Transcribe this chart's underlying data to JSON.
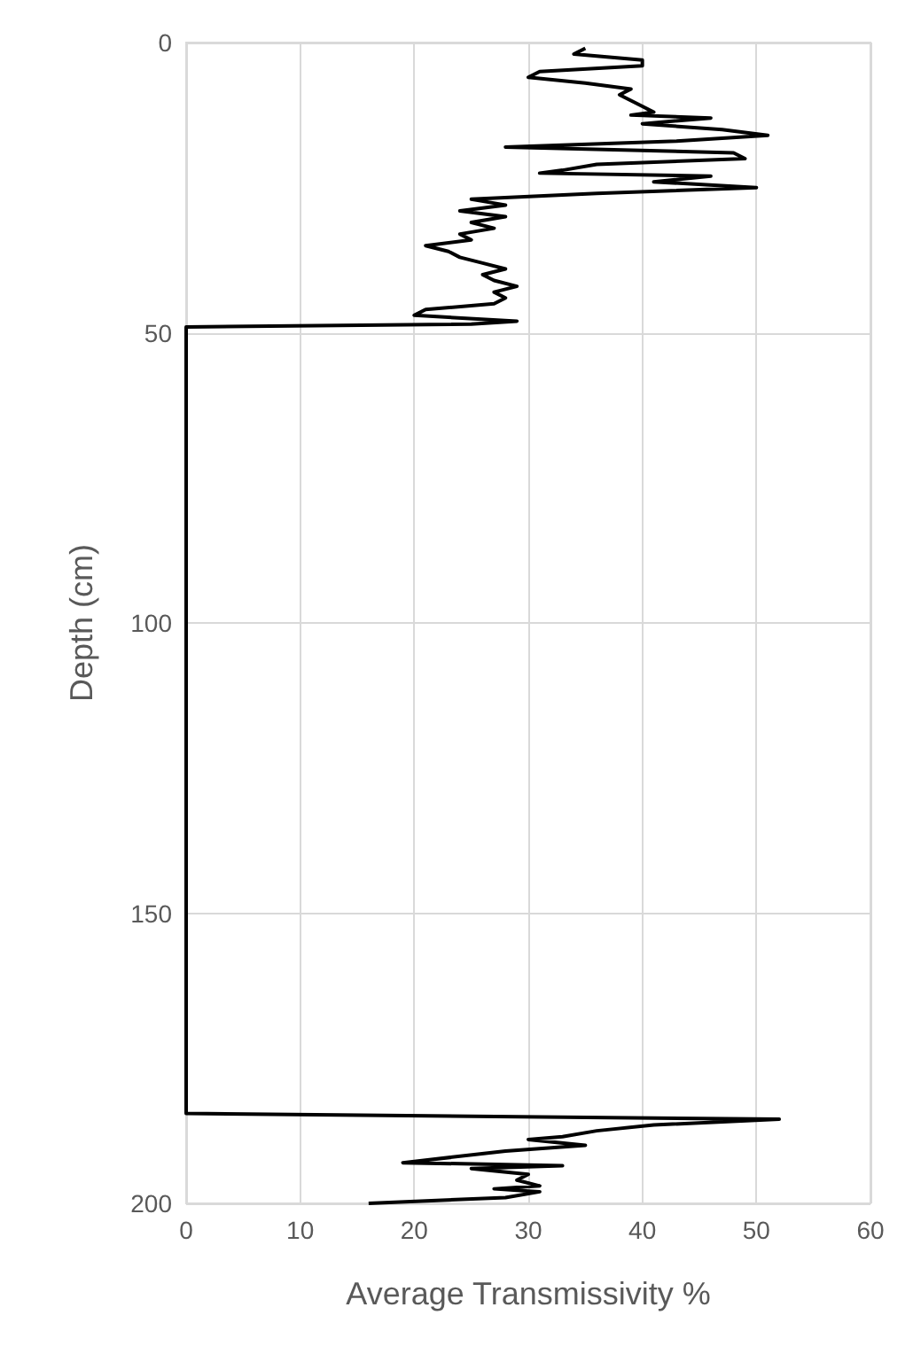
{
  "chart_data": {
    "type": "line",
    "xlabel": "Average Transmissivity %",
    "ylabel": "Depth (cm)",
    "x": [
      35,
      34,
      40,
      40,
      31,
      30,
      35,
      39,
      38,
      39,
      40,
      41,
      39,
      46,
      40,
      47,
      51,
      43,
      28,
      48,
      49,
      36,
      33,
      31,
      46,
      41,
      50,
      36,
      25,
      28,
      24,
      28,
      25,
      27,
      24,
      25,
      21,
      23,
      24,
      26,
      28,
      26,
      27,
      29,
      27,
      28,
      27,
      21,
      20,
      29,
      25,
      0,
      0,
      52,
      41,
      36,
      33,
      30,
      35,
      28,
      19,
      33,
      25,
      30,
      29,
      31,
      27,
      31,
      28,
      16
    ],
    "values": [
      1,
      2,
      3,
      4,
      5,
      6,
      7,
      8,
      9,
      10,
      11,
      12,
      12.5,
      13,
      14,
      15,
      16,
      17,
      18,
      19,
      20,
      21,
      22,
      22.5,
      23,
      24,
      25,
      26,
      27,
      28,
      29,
      30,
      31,
      32,
      33,
      34,
      35,
      36,
      37,
      38,
      39,
      40,
      41,
      42,
      43,
      44,
      45,
      46,
      47,
      48,
      48.5,
      49,
      184.5,
      185.5,
      186.5,
      187.5,
      188.5,
      189,
      190,
      191,
      193,
      193.5,
      194,
      195,
      196,
      197,
      197.5,
      198,
      199,
      200
    ],
    "color": "#000000",
    "xlim": [
      0,
      60
    ],
    "xticks": [
      0,
      10,
      20,
      30,
      40,
      50,
      60
    ],
    "ylim": [
      200,
      0
    ],
    "yticks": [
      0,
      50,
      100,
      150,
      200
    ],
    "grid": true,
    "marker": "none",
    "line_style": "solid"
  }
}
